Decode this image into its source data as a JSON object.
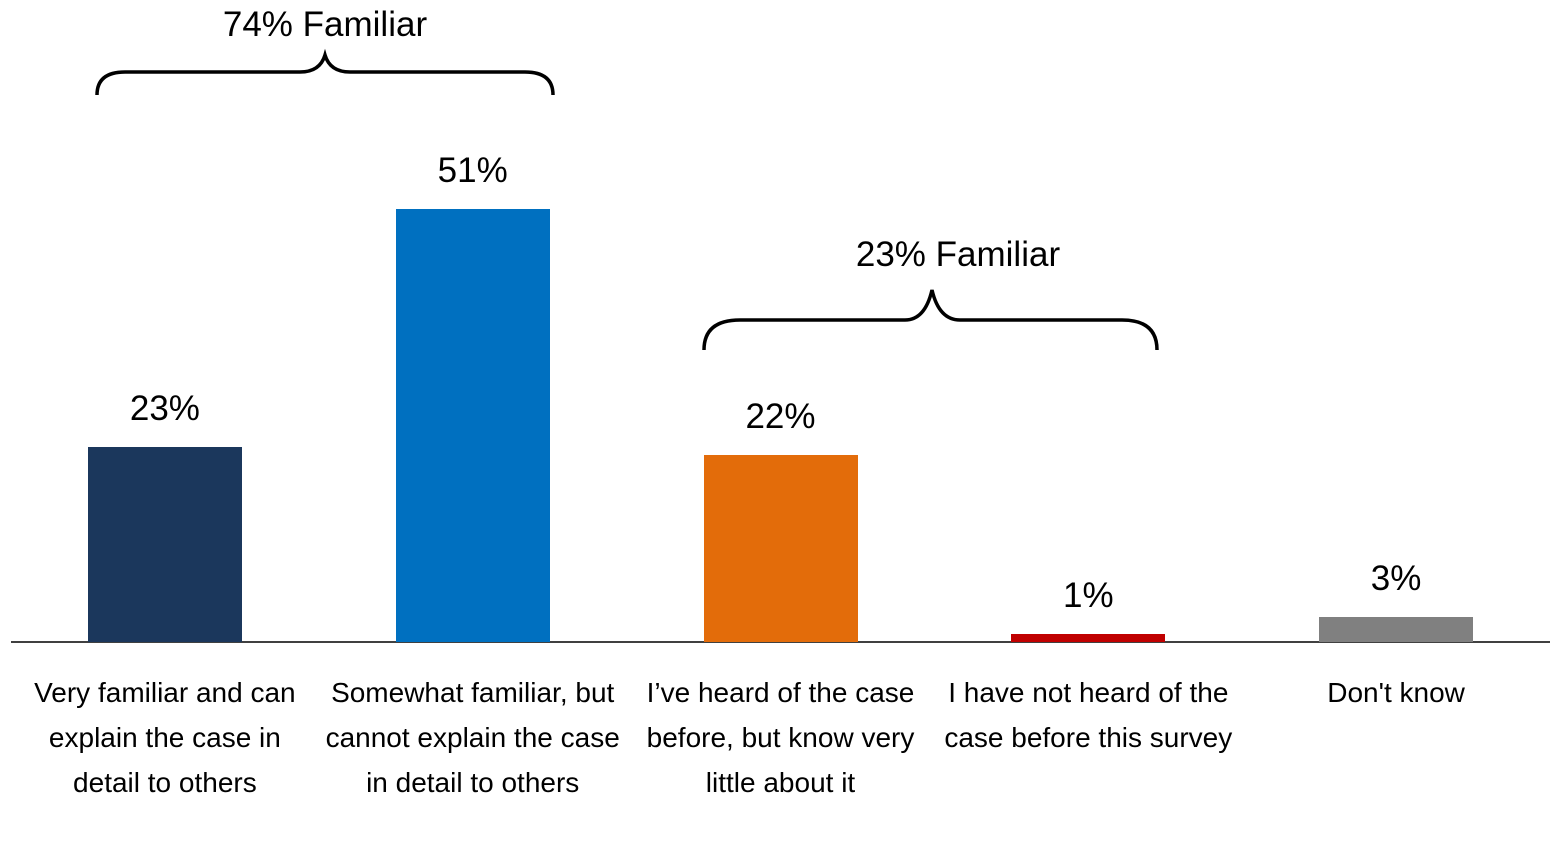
{
  "chart_data": {
    "type": "bar",
    "categories": [
      "Very familiar and can explain the case in detail to others",
      "Somewhat familiar, but cannot explain the case in detail to others",
      "I’ve heard of the case before, but know very little about it",
      "I have not heard of the case before this survey",
      "Don't know"
    ],
    "values": [
      23,
      51,
      22,
      1,
      3
    ],
    "value_labels": [
      "23%",
      "51%",
      "22%",
      "1%",
      "3%"
    ],
    "colors": [
      "#1b375c",
      "#0070c0",
      "#e36c0a",
      "#c00000",
      "#808080"
    ],
    "annotations": [
      "74% Familiar",
      "23% Familiar"
    ]
  }
}
